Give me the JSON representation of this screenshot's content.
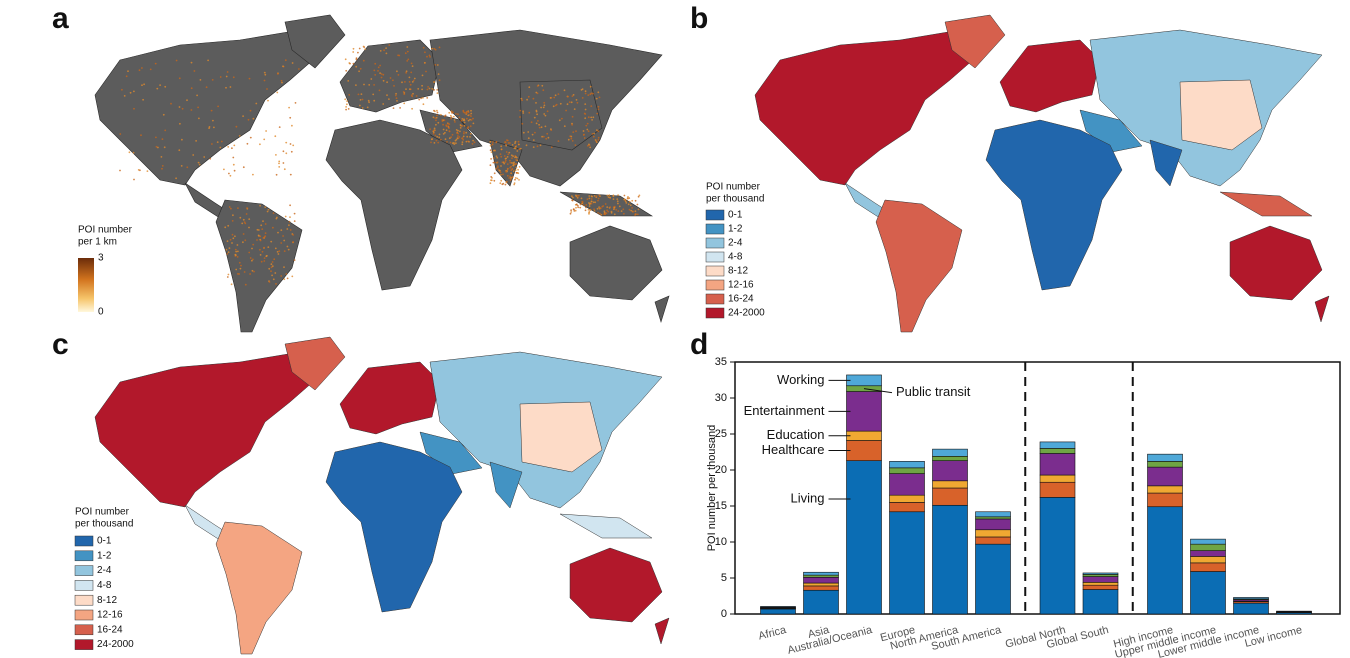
{
  "panels": {
    "a": {
      "label": "a",
      "legend": {
        "title": [
          "POI number",
          "per 1 km"
        ],
        "range": [
          0,
          3
        ]
      }
    },
    "b": {
      "label": "b",
      "legend": {
        "title": [
          "POI number",
          "per thousand"
        ],
        "items": [
          {
            "label": "0-1",
            "color": "#2166ac"
          },
          {
            "label": "1-2",
            "color": "#4393c3"
          },
          {
            "label": "2-4",
            "color": "#92c5de"
          },
          {
            "label": "4-8",
            "color": "#d1e5f0"
          },
          {
            "label": "8-12",
            "color": "#fddbc7"
          },
          {
            "label": "12-16",
            "color": "#f4a582"
          },
          {
            "label": "16-24",
            "color": "#d6604d"
          },
          {
            "label": "24-2000",
            "color": "#b2182b"
          }
        ]
      }
    },
    "c": {
      "label": "c",
      "legend": {
        "title": [
          "POI number",
          "per thousand"
        ],
        "items": [
          {
            "label": "0-1",
            "color": "#2166ac"
          },
          {
            "label": "1-2",
            "color": "#4393c3"
          },
          {
            "label": "2-4",
            "color": "#92c5de"
          },
          {
            "label": "4-8",
            "color": "#d1e5f0"
          },
          {
            "label": "8-12",
            "color": "#fddbc7"
          },
          {
            "label": "12-16",
            "color": "#f4a582"
          },
          {
            "label": "16-24",
            "color": "#d6604d"
          },
          {
            "label": "24-2000",
            "color": "#b2182b"
          }
        ]
      }
    },
    "d": {
      "label": "d"
    }
  },
  "chart_data": {
    "type": "bar",
    "stacked": true,
    "ylabel": "POI number per thousand",
    "categories": [
      "Africa",
      "Asia",
      "Australia/Oceania",
      "Europe",
      "North America",
      "South America",
      "Global North",
      "Global South",
      "High income",
      "Upper middle income",
      "Lower middle income",
      "Low income"
    ],
    "series": [
      {
        "name": "Living",
        "color": "#0b6db4",
        "values": [
          0.7,
          3.3,
          21.3,
          14.2,
          15.1,
          9.7,
          16.2,
          3.4,
          14.9,
          5.9,
          1.5,
          0.2
        ]
      },
      {
        "name": "Healthcare",
        "color": "#d8622a",
        "values": [
          0.05,
          0.6,
          2.8,
          1.3,
          2.4,
          1.0,
          2.1,
          0.6,
          1.9,
          1.2,
          0.2,
          0.03
        ]
      },
      {
        "name": "Education",
        "color": "#f0a832",
        "values": [
          0.05,
          0.4,
          1.3,
          1.0,
          1.0,
          1.0,
          1.0,
          0.4,
          1.0,
          0.9,
          0.1,
          0.02
        ]
      },
      {
        "name": "Entertainment",
        "color": "#7b2d8e",
        "values": [
          0.1,
          0.8,
          5.5,
          3.0,
          2.8,
          1.5,
          3.0,
          0.8,
          2.6,
          0.8,
          0.2,
          0.05
        ]
      },
      {
        "name": "Public transit",
        "color": "#6fa544",
        "values": [
          0.05,
          0.3,
          0.8,
          0.8,
          0.6,
          0.3,
          0.7,
          0.3,
          0.8,
          0.9,
          0.1,
          0.02
        ]
      },
      {
        "name": "Working",
        "color": "#4fa8d8",
        "values": [
          0.1,
          0.4,
          1.5,
          0.9,
          1.0,
          0.7,
          0.9,
          0.2,
          1.0,
          0.7,
          0.2,
          0.08
        ]
      }
    ],
    "ylim": [
      0,
      35
    ],
    "yticks": [
      0,
      5,
      10,
      15,
      20,
      25,
      30,
      35
    ]
  }
}
